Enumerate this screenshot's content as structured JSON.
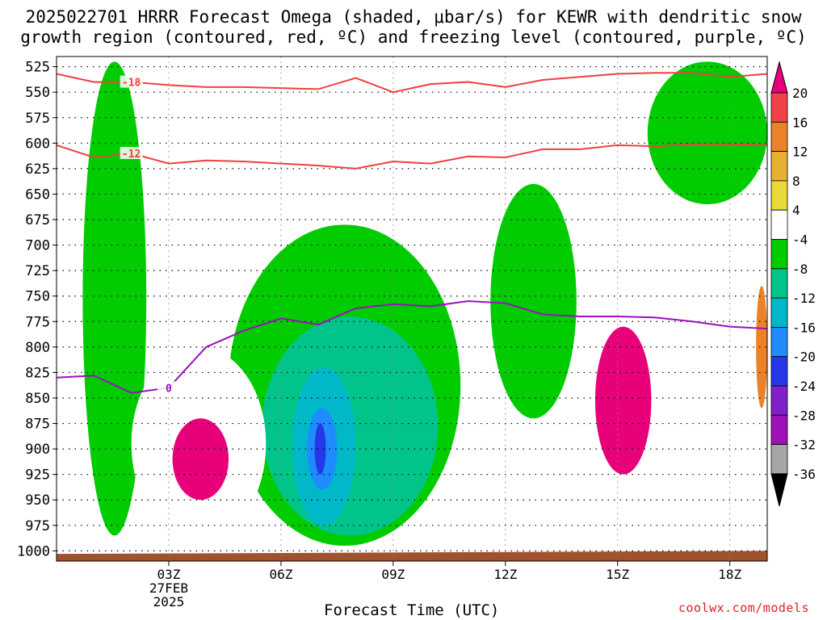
{
  "header": {
    "title_line1": "2025022701 HRRR Forecast Omega (shaded, μbar/s) for KEWR with dendritic snow",
    "title_line2": "growth region (contoured, red, ºC) and freezing level (contoured, purple, ºC)"
  },
  "footer": {
    "credit": "coolwx.com/models"
  },
  "chart_data": {
    "type": "heatmap",
    "title": "2025022701 HRRR Forecast Omega (shaded, μbar/s) for KEWR with dendritic snow growth region (contoured, red, ºC) and freezing level (contoured, purple, ºC)",
    "xlabel": "Forecast Time (UTC)",
    "ylabel": "",
    "x_range_hours": [
      0,
      19
    ],
    "y_range_hpa": [
      1010,
      515
    ],
    "y_scale": "reversed",
    "grid": true,
    "x_ticks": [
      {
        "hour": 3,
        "label": "03Z",
        "sub1": "27FEB",
        "sub2": "2025"
      },
      {
        "hour": 6,
        "label": "06Z"
      },
      {
        "hour": 9,
        "label": "09Z"
      },
      {
        "hour": 12,
        "label": "12Z"
      },
      {
        "hour": 15,
        "label": "15Z"
      },
      {
        "hour": 18,
        "label": "18Z"
      }
    ],
    "y_ticks": [
      525,
      550,
      575,
      600,
      625,
      650,
      675,
      700,
      725,
      750,
      775,
      800,
      825,
      850,
      875,
      900,
      925,
      950,
      975,
      1000
    ],
    "colorbar": {
      "labels": [
        "20",
        "16",
        "12",
        "8",
        "4",
        "-4",
        "-8",
        "-12",
        "-16",
        "-20",
        "-24",
        "-28",
        "-32",
        "-36"
      ],
      "colors": [
        "#e8007a",
        "#f0404a",
        "#ec8228",
        "#e6b030",
        "#e8d838",
        "#ffffff",
        "#00cc00",
        "#00c48a",
        "#00b8c8",
        "#1e8cff",
        "#2438e8",
        "#8020c8",
        "#a010b8",
        "#a6a6a6",
        "#000000"
      ],
      "extend": "both"
    },
    "terrain_color": "#a0522d",
    "contour_colors": {
      "dgz": "#f04040",
      "freezing": "#9a10c0"
    },
    "contours": [
      {
        "name": "DGZ -18C",
        "label": "-18",
        "x": [
          0,
          1,
          2,
          3,
          4,
          5,
          6,
          7,
          8,
          9,
          10,
          11,
          12,
          13,
          14,
          15,
          16,
          17,
          18,
          19
        ],
        "y": [
          532,
          540,
          540,
          543,
          545,
          545,
          546,
          547,
          536,
          550,
          542,
          540,
          545,
          538,
          535,
          532,
          531,
          531,
          535,
          532
        ]
      },
      {
        "name": "DGZ -12C",
        "label": "-12",
        "x": [
          0,
          1,
          2,
          3,
          4,
          5,
          6,
          7,
          8,
          9,
          10,
          11,
          12,
          13,
          14,
          15,
          16,
          17,
          18,
          19
        ],
        "y": [
          602,
          614,
          610,
          620,
          617,
          618,
          620,
          622,
          625,
          618,
          620,
          613,
          614,
          606,
          606,
          602,
          603,
          601,
          601,
          602
        ]
      },
      {
        "name": "Freezing 0C",
        "label": "0",
        "x": [
          0,
          1,
          2,
          3,
          4,
          5,
          6,
          7,
          8,
          9,
          10,
          11,
          12,
          13,
          14,
          15,
          16,
          17,
          18,
          19
        ],
        "y": [
          830,
          828,
          845,
          840,
          800,
          784,
          772,
          778,
          762,
          758,
          760,
          755,
          757,
          768,
          770,
          770,
          771,
          775,
          780,
          782
        ]
      }
    ],
    "shaded_regions": [
      {
        "level": "-4",
        "hour_range": [
          0.7,
          2.4
        ],
        "p_range": [
          520,
          985
        ],
        "note": "sinking column"
      },
      {
        "level": "-4",
        "hour_range": [
          4.6,
          10.8
        ],
        "p_range": [
          680,
          995
        ]
      },
      {
        "level": "-4",
        "hour_range": [
          11.6,
          13.9
        ],
        "p_range": [
          640,
          870
        ]
      },
      {
        "level": "-4",
        "hour_range": [
          15.8,
          19
        ],
        "p_range": [
          520,
          660
        ]
      },
      {
        "level": "-8",
        "hour_range": [
          5.5,
          10.2
        ],
        "p_range": [
          770,
          985
        ]
      },
      {
        "level": "-12",
        "hour_range": [
          6.3,
          8.0
        ],
        "p_range": [
          820,
          975
        ]
      },
      {
        "level": "-16",
        "hour_range": [
          6.7,
          7.5
        ],
        "p_range": [
          860,
          940
        ]
      },
      {
        "level": "-20",
        "hour_range": [
          6.9,
          7.2
        ],
        "p_range": [
          875,
          925
        ]
      },
      {
        "level": "4",
        "hour_range": [
          2.0,
          5.6
        ],
        "p_range": [
          800,
          990
        ]
      },
      {
        "level": "20",
        "hour_range": [
          3.1,
          4.6
        ],
        "p_range": [
          870,
          950
        ]
      },
      {
        "level": "4",
        "hour_range": [
          14.0,
          18.1
        ],
        "p_range": [
          690,
          960
        ]
      },
      {
        "level": "20",
        "hour_range": [
          14.4,
          15.9
        ],
        "p_range": [
          780,
          925
        ]
      },
      {
        "level": "4",
        "hour_range": [
          18.5,
          19
        ],
        "p_range": [
          700,
          880
        ]
      },
      {
        "level": "12",
        "hour_range": [
          18.7,
          19
        ],
        "p_range": [
          740,
          860
        ]
      }
    ]
  }
}
